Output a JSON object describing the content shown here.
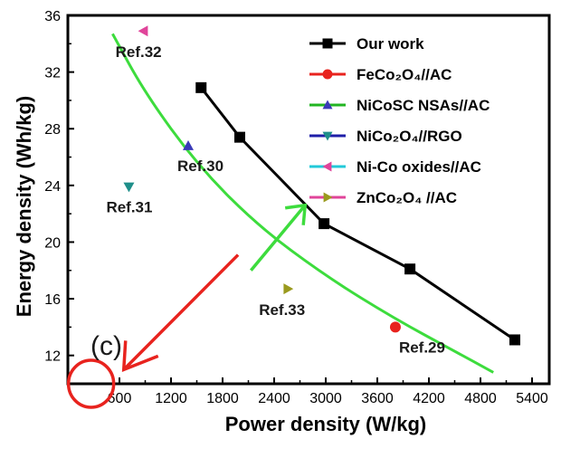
{
  "chart_data": {
    "type": "scatter",
    "xlabel": "Power density (W/kg)",
    "ylabel": "Energy density (Wh/kg)",
    "xlim": [
      0,
      5600
    ],
    "ylim": [
      10,
      36
    ],
    "xticks": [
      600,
      1200,
      1800,
      2400,
      3000,
      3600,
      4200,
      4800,
      5400
    ],
    "yticks": [
      12,
      16,
      20,
      24,
      28,
      32,
      36
    ],
    "panel_label": "(c)",
    "legend_position": "top-right",
    "series": [
      {
        "name": "Our work",
        "color": "#000000",
        "marker": "square",
        "line": true,
        "x": [
          1550,
          2000,
          2980,
          3980,
          5200
        ],
        "y": [
          30.9,
          27.4,
          21.3,
          18.1,
          13.1
        ]
      },
      {
        "name": "FeCo₂O₄//AC",
        "color": "#e8231e",
        "marker": "circle",
        "line": false,
        "x": [
          3810
        ],
        "y": [
          14.0
        ],
        "ref": "Ref.29"
      },
      {
        "name": "NiCoSC NSAs//AC",
        "color": "#3a3ab8",
        "marker": "triangle-up",
        "line": false,
        "x": [
          1400
        ],
        "y": [
          26.8
        ],
        "ref": "Ref.30"
      },
      {
        "name": "NiCo₂O₄//RGO",
        "color": "#1f8f8a",
        "marker": "triangle-down",
        "line": false,
        "x": [
          710
        ],
        "y": [
          23.9
        ],
        "ref": "Ref.31"
      },
      {
        "name": "Ni-Co oxides//AC",
        "color": "#e0449a",
        "marker": "triangle-left",
        "line": false,
        "x": [
          880
        ],
        "y": [
          34.9
        ],
        "ref": "Ref.32"
      },
      {
        "name": "ZnCo₂O₄ //AC",
        "color": "#9a9a1e",
        "marker": "triangle-right",
        "line": false,
        "x": [
          2560
        ],
        "y": [
          16.7
        ],
        "ref": "Ref.33"
      }
    ],
    "legend_line_colors": [
      "#000000",
      "#e8231e",
      "#22b522",
      "#1f1fa8",
      "#22c9d9",
      "#e0449a"
    ],
    "annotations": {
      "green_curve": {
        "color": "#3ddc3d",
        "x": [
          520,
          900,
          1500,
          2200,
          3000,
          3800,
          4500,
          4950
        ],
        "y": [
          34.7,
          30.5,
          25.5,
          21.2,
          17.6,
          14.6,
          12.3,
          10.8
        ]
      },
      "green_arrow": {
        "color": "#3ddc3d",
        "from": [
          2130,
          18.0
        ],
        "to": [
          2760,
          22.6
        ]
      },
      "red_arrow": {
        "color": "#e8231e",
        "from": [
          1980,
          19.1
        ],
        "to": [
          650,
          11.0
        ]
      },
      "red_circle": {
        "color": "#e8231e",
        "center": [
          270,
          10.0
        ]
      }
    }
  }
}
